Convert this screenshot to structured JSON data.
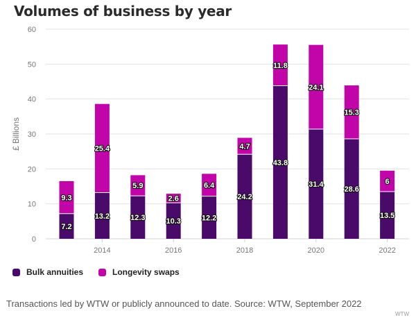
{
  "title": "Volumes of business by year",
  "footnote": "Transactions led by WTW or publicly announced to date. Source: WTW, September 2022",
  "brand": "WTW",
  "colors": {
    "bulk": "#4a0a6a",
    "longevity": "#c205a8",
    "grid": "#e2e2e2",
    "axis_text": "#777777"
  },
  "chart_data": {
    "type": "bar",
    "stacked": true,
    "title": "Volumes of business by year",
    "xlabel": "",
    "ylabel": "£ Billions",
    "ylim": [
      0,
      60
    ],
    "yticks": [
      0,
      10,
      20,
      30,
      40,
      50,
      60
    ],
    "grid": true,
    "categories": [
      "2013",
      "2014",
      "2015",
      "2016",
      "2017",
      "2018",
      "2019",
      "2020",
      "2021",
      "2022"
    ],
    "xtick_labels": [
      "2014",
      "2016",
      "2018",
      "2020",
      "2022"
    ],
    "series": [
      {
        "name": "Bulk annuities",
        "values": [
          7.2,
          13.2,
          12.3,
          10.3,
          12.2,
          24.2,
          43.8,
          31.4,
          28.6,
          13.5
        ]
      },
      {
        "name": "Longevity swaps",
        "values": [
          9.3,
          25.4,
          5.9,
          2.6,
          6.4,
          4.7,
          11.8,
          24.1,
          15.3,
          6
        ]
      }
    ],
    "legend": "bottom-left"
  }
}
